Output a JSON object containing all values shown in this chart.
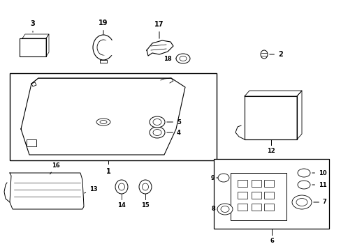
{
  "background": "#ffffff",
  "fig_w": 4.89,
  "fig_h": 3.6,
  "dpi": 100,
  "lw_thin": 0.5,
  "lw_med": 0.8,
  "lw_thick": 1.0,
  "label_fs": 7,
  "small_fs": 6
}
